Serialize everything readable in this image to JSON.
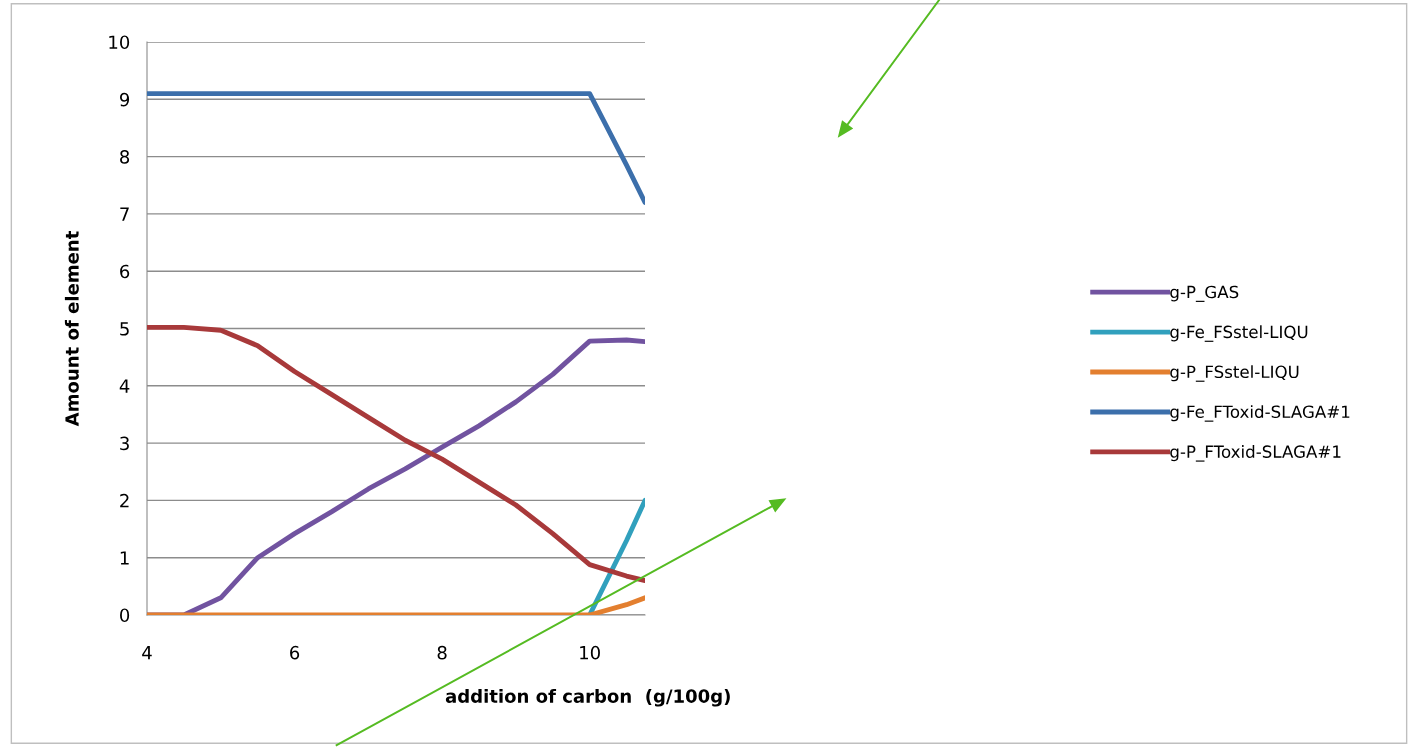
{
  "chart_data": {
    "type": "line",
    "xlabel": "addition of carbon  (g/100g)",
    "ylabel": "Amount of element",
    "x": [
      4,
      4.5,
      5,
      5.5,
      6,
      6.5,
      7,
      7.5,
      8,
      8.5,
      9,
      9.5,
      10,
      10.5,
      10.75
    ],
    "series": [
      {
        "name": "g-P_GAS",
        "color": "#7153a0",
        "values": [
          0,
          0,
          0.3,
          1.0,
          1.42,
          1.8,
          2.2,
          2.55,
          2.93,
          3.3,
          3.72,
          4.2,
          4.78,
          4.8,
          4.77
        ]
      },
      {
        "name": "g-Fe_FSstel-LIQU",
        "color": "#31a0bd",
        "values": [
          null,
          null,
          null,
          null,
          null,
          null,
          null,
          null,
          null,
          null,
          null,
          null,
          0,
          1.3,
          2.0
        ]
      },
      {
        "name": "g-P_FSstel-LIQU",
        "color": "#e37f2f",
        "values": [
          0,
          0,
          0,
          0,
          0,
          0,
          0,
          0,
          0,
          0,
          0,
          0,
          0,
          0.18,
          0.3
        ]
      },
      {
        "name": "g-Fe_FToxid-SLAGA#1",
        "color": "#3c6fab",
        "values": [
          9.1,
          9.1,
          9.1,
          9.1,
          9.1,
          9.1,
          9.1,
          9.1,
          9.1,
          9.1,
          9.1,
          9.1,
          9.1,
          7.85,
          7.2
        ]
      },
      {
        "name": "g-P_FToxid-SLAGA#1",
        "color": "#a8393a",
        "values": [
          5.02,
          5.02,
          4.97,
          4.7,
          4.25,
          3.85,
          3.45,
          3.05,
          2.72,
          2.32,
          1.92,
          1.42,
          0.88,
          0.68,
          0.6
        ]
      }
    ],
    "xlim": [
      4,
      10.75
    ],
    "xticks": [
      4,
      6,
      8,
      10
    ],
    "ylim": [
      0,
      10
    ],
    "yticks": [
      0,
      1,
      2,
      3,
      4,
      5,
      6,
      7,
      8,
      9,
      10
    ],
    "grid": "y",
    "legend": "right",
    "marker": "none",
    "line_style": "solid"
  }
}
